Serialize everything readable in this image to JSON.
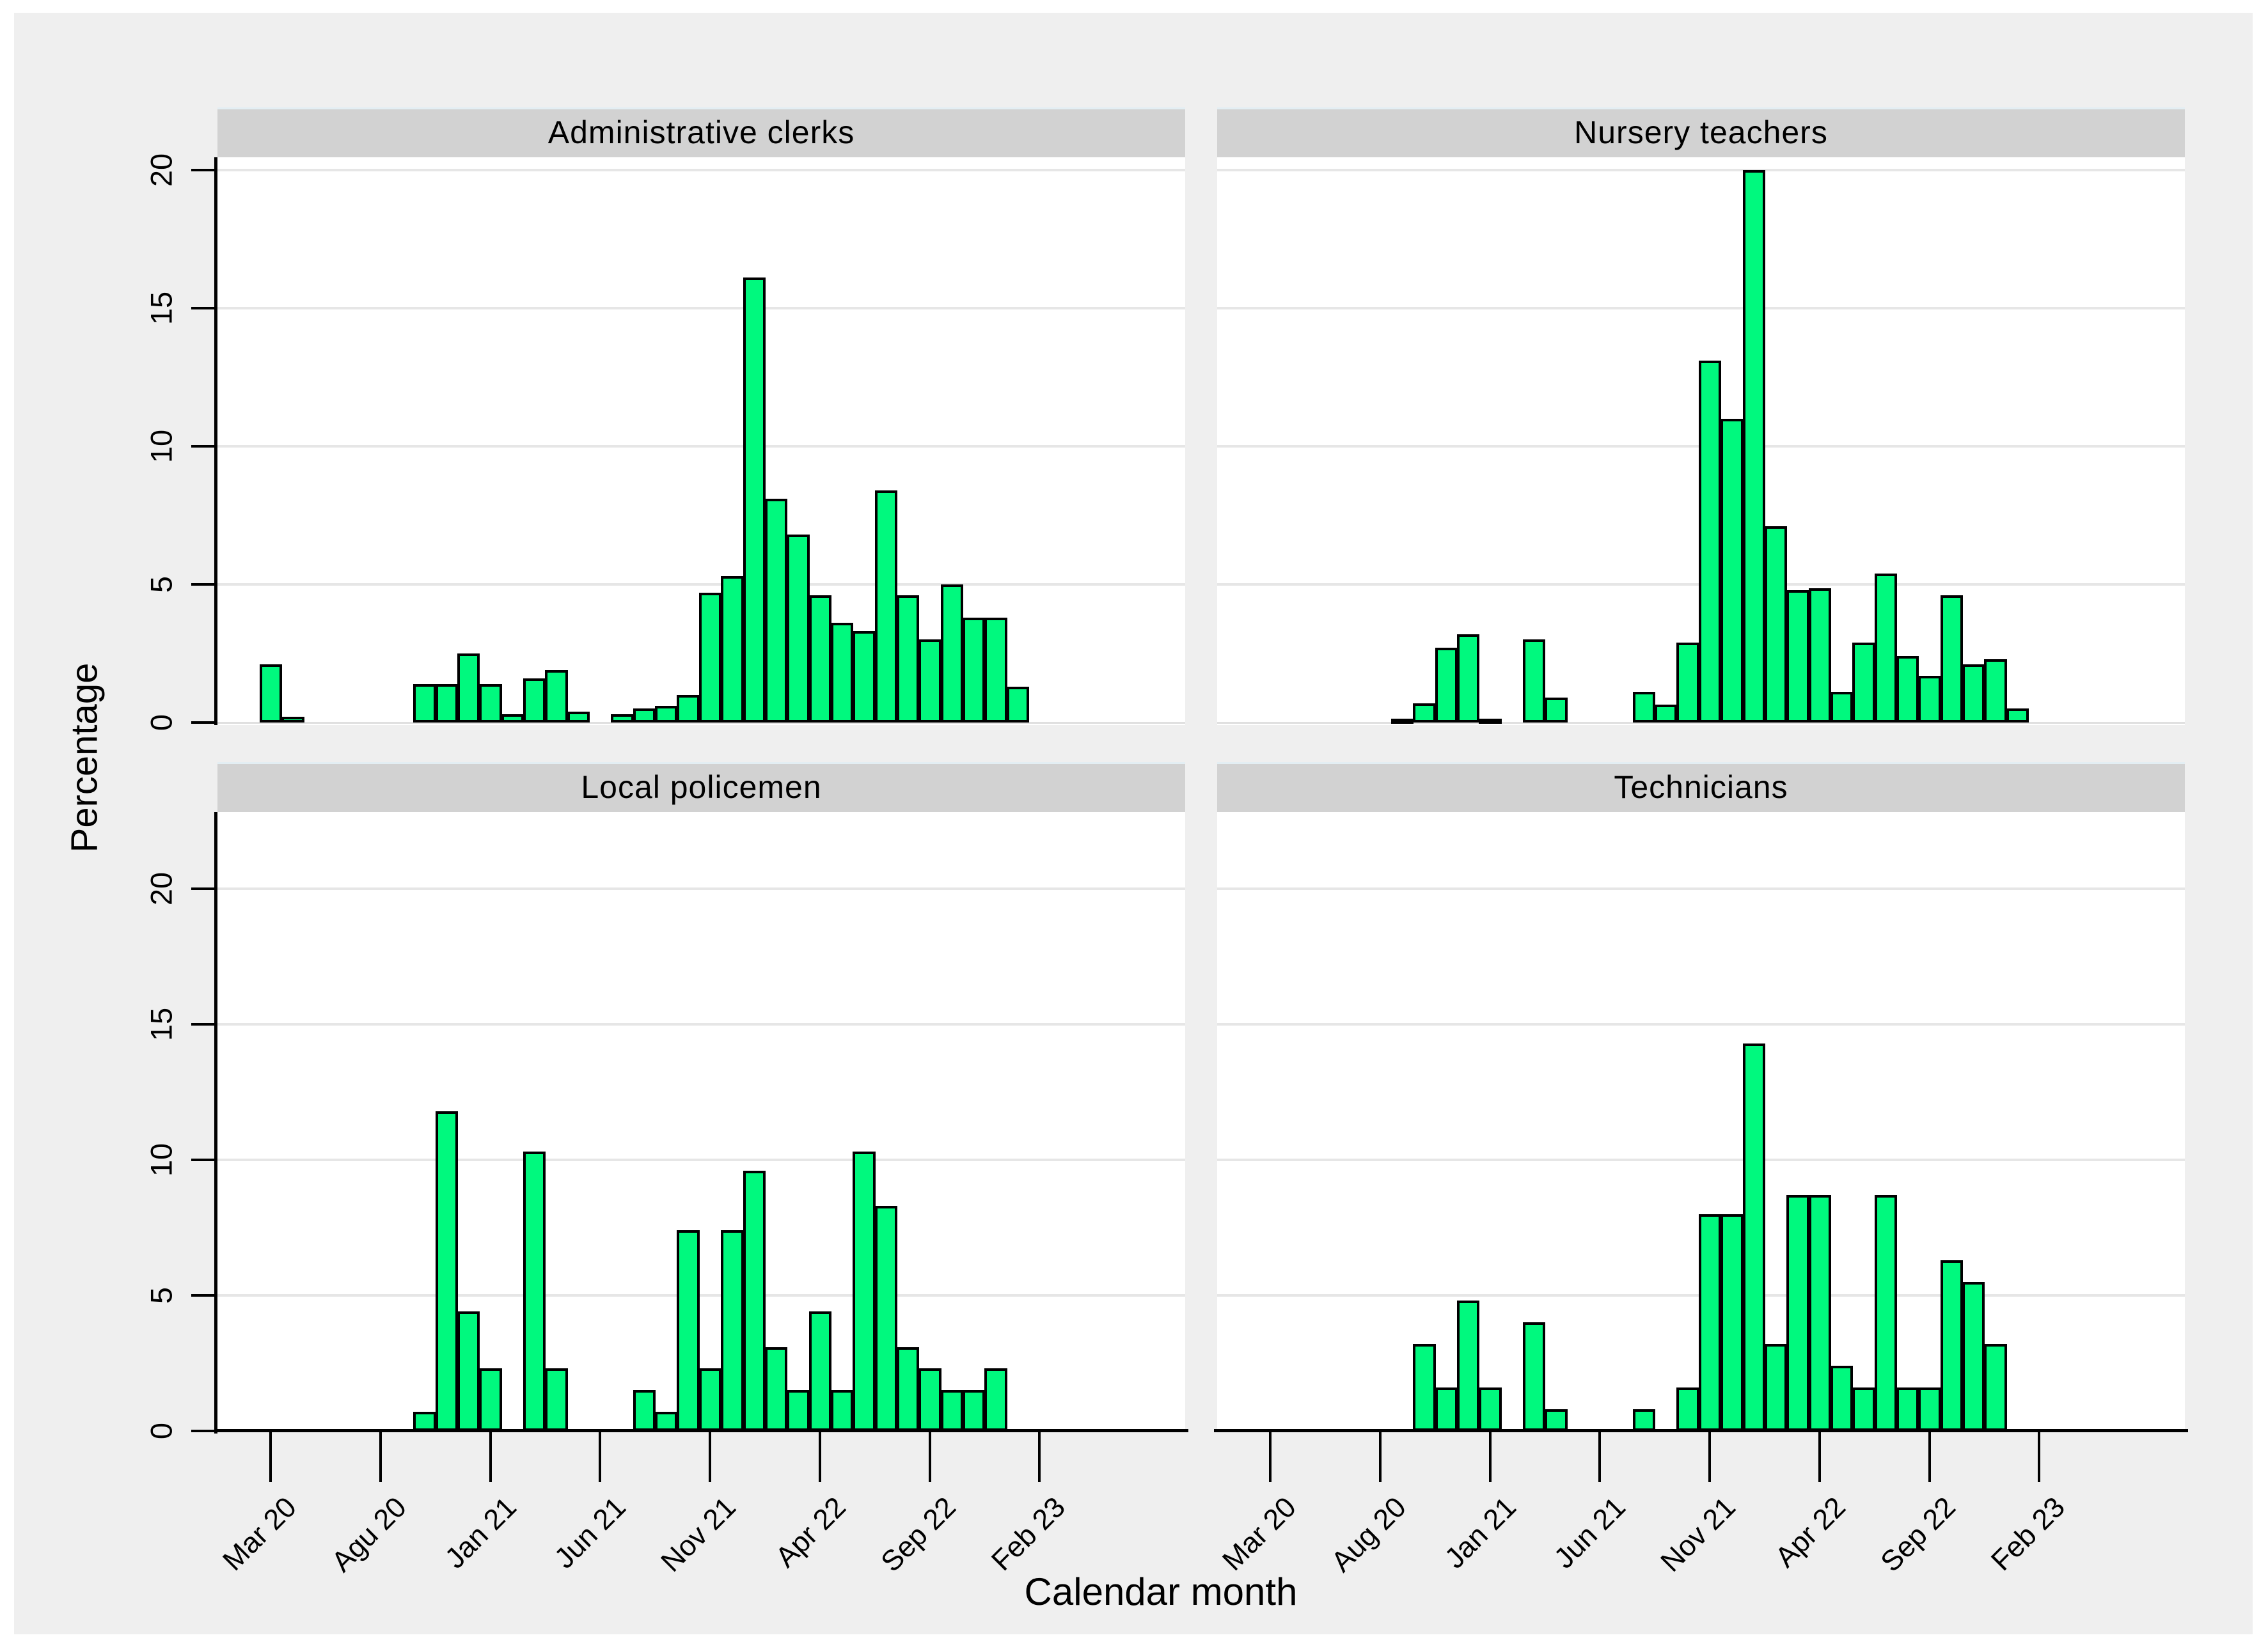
{
  "figure": {
    "ylabel": "Percentage",
    "xlabel": "Calendar month",
    "bar_fill_color": "#00F97E",
    "bar_border_color": "#000000",
    "background_color": "#efefef",
    "strip_color": "#d2d2d2",
    "gridline_color": "#e6e6e6"
  },
  "axes": {
    "y_ticks": [
      0,
      5,
      10,
      15,
      20
    ],
    "ylim": [
      0,
      20
    ],
    "x_tick_month_indexes": [
      0,
      5,
      10,
      15,
      20,
      25,
      30,
      35
    ],
    "x_tick_labels_left_column": [
      "Mar 20",
      "Agu 20",
      "Jan 21",
      "Jun 21",
      "Nov 21",
      "Apr 22",
      "Sep 22",
      "Feb 23"
    ],
    "x_tick_labels_right_column": [
      "Mar 20",
      "Aug 20",
      "Jan 21",
      "Jun 21",
      "Nov 21",
      "Apr 22",
      "Sep 22",
      "Feb 23"
    ],
    "grid": true
  },
  "chart_data": [
    {
      "type": "bar",
      "title": "Administrative clerks",
      "xlabel": "Calendar month",
      "ylabel": "Percentage",
      "ylim": [
        0,
        20
      ],
      "categories": [
        "Mar 20",
        "Apr 20",
        "May 20",
        "Jun 20",
        "Jul 20",
        "Aug 20",
        "Sep 20",
        "Oct 20",
        "Nov 20",
        "Dec 20",
        "Jan 21",
        "Feb 21",
        "Mar 21",
        "Apr 21",
        "May 21",
        "Jun 21",
        "Jul 21",
        "Aug 21",
        "Sep 21",
        "Oct 21",
        "Nov 21",
        "Dec 21",
        "Jan 22",
        "Feb 22",
        "Mar 22",
        "Apr 22",
        "May 22",
        "Jun 22",
        "Jul 22",
        "Aug 22",
        "Sep 22",
        "Oct 22",
        "Nov 22",
        "Dec 22",
        "Jan 23",
        "Feb 23"
      ],
      "values": [
        2.1,
        0.2,
        0,
        0,
        0,
        0,
        0,
        1.4,
        1.4,
        2.5,
        1.4,
        0.3,
        1.6,
        1.9,
        0.4,
        0,
        0.3,
        0.5,
        0.6,
        1.0,
        4.7,
        5.3,
        16.1,
        8.1,
        6.8,
        4.6,
        3.6,
        3.3,
        8.4,
        4.6,
        3.0,
        5.0,
        3.8,
        3.8,
        1.3,
        0
      ]
    },
    {
      "type": "bar",
      "title": "Nursery teachers",
      "xlabel": "Calendar month",
      "ylabel": "Percentage",
      "ylim": [
        0,
        20
      ],
      "categories": [
        "Mar 20",
        "Apr 20",
        "May 20",
        "Jun 20",
        "Jul 20",
        "Aug 20",
        "Sep 20",
        "Oct 20",
        "Nov 20",
        "Dec 20",
        "Jan 21",
        "Feb 21",
        "Mar 21",
        "Apr 21",
        "May 21",
        "Jun 21",
        "Jul 21",
        "Aug 21",
        "Sep 21",
        "Oct 21",
        "Nov 21",
        "Dec 21",
        "Jan 22",
        "Feb 22",
        "Mar 22",
        "Apr 22",
        "May 22",
        "Jun 22",
        "Jul 22",
        "Aug 22",
        "Sep 22",
        "Oct 22",
        "Nov 22",
        "Dec 22",
        "Jan 23",
        "Feb 23"
      ],
      "values": [
        0,
        0,
        0,
        0,
        0,
        0,
        0.15,
        0.7,
        2.7,
        3.2,
        0.1,
        0,
        3.0,
        0.9,
        0,
        0,
        0,
        1.1,
        0.65,
        2.9,
        13.1,
        11.0,
        20.0,
        7.1,
        4.8,
        4.85,
        1.1,
        2.9,
        5.4,
        2.4,
        1.7,
        4.6,
        2.1,
        2.3,
        0.5,
        0
      ]
    },
    {
      "type": "bar",
      "title": "Local policemen",
      "xlabel": "Calendar month",
      "ylabel": "Percentage",
      "ylim": [
        0,
        20
      ],
      "categories": [
        "Mar 20",
        "Apr 20",
        "May 20",
        "Jun 20",
        "Jul 20",
        "Aug 20",
        "Sep 20",
        "Oct 20",
        "Nov 20",
        "Dec 20",
        "Jan 21",
        "Feb 21",
        "Mar 21",
        "Apr 21",
        "May 21",
        "Jun 21",
        "Jul 21",
        "Aug 21",
        "Sep 21",
        "Oct 21",
        "Nov 21",
        "Dec 21",
        "Jan 22",
        "Feb 22",
        "Mar 22",
        "Apr 22",
        "May 22",
        "Jun 22",
        "Jul 22",
        "Aug 22",
        "Sep 22",
        "Oct 22",
        "Nov 22",
        "Dec 22",
        "Jan 23",
        "Feb 23"
      ],
      "values": [
        0,
        0,
        0,
        0,
        0,
        0,
        0,
        0.7,
        11.8,
        4.4,
        2.3,
        0,
        10.3,
        2.3,
        0,
        0,
        0,
        1.5,
        0.7,
        7.4,
        2.3,
        7.4,
        9.6,
        3.1,
        1.5,
        4.4,
        1.5,
        10.3,
        8.3,
        3.1,
        2.3,
        1.5,
        1.5,
        2.3,
        0,
        0
      ]
    },
    {
      "type": "bar",
      "title": "Technicians",
      "xlabel": "Calendar month",
      "ylabel": "Percentage",
      "ylim": [
        0,
        20
      ],
      "categories": [
        "Mar 20",
        "Apr 20",
        "May 20",
        "Jun 20",
        "Jul 20",
        "Aug 20",
        "Sep 20",
        "Oct 20",
        "Nov 20",
        "Dec 20",
        "Jan 21",
        "Feb 21",
        "Mar 21",
        "Apr 21",
        "May 21",
        "Jun 21",
        "Jul 21",
        "Aug 21",
        "Sep 21",
        "Oct 21",
        "Nov 21",
        "Dec 21",
        "Jan 22",
        "Feb 22",
        "Mar 22",
        "Apr 22",
        "May 22",
        "Jun 22",
        "Jul 22",
        "Aug 22",
        "Sep 22",
        "Oct 22",
        "Nov 22",
        "Dec 22",
        "Jan 23",
        "Feb 23"
      ],
      "values": [
        0,
        0,
        0,
        0,
        0,
        0,
        0,
        3.2,
        1.6,
        4.8,
        1.6,
        0,
        4.0,
        0.8,
        0,
        0,
        0,
        0.8,
        0,
        1.6,
        8.0,
        8.0,
        14.3,
        3.2,
        8.7,
        8.7,
        2.4,
        1.6,
        8.7,
        1.6,
        1.6,
        6.3,
        5.5,
        3.2,
        0,
        0
      ]
    }
  ]
}
